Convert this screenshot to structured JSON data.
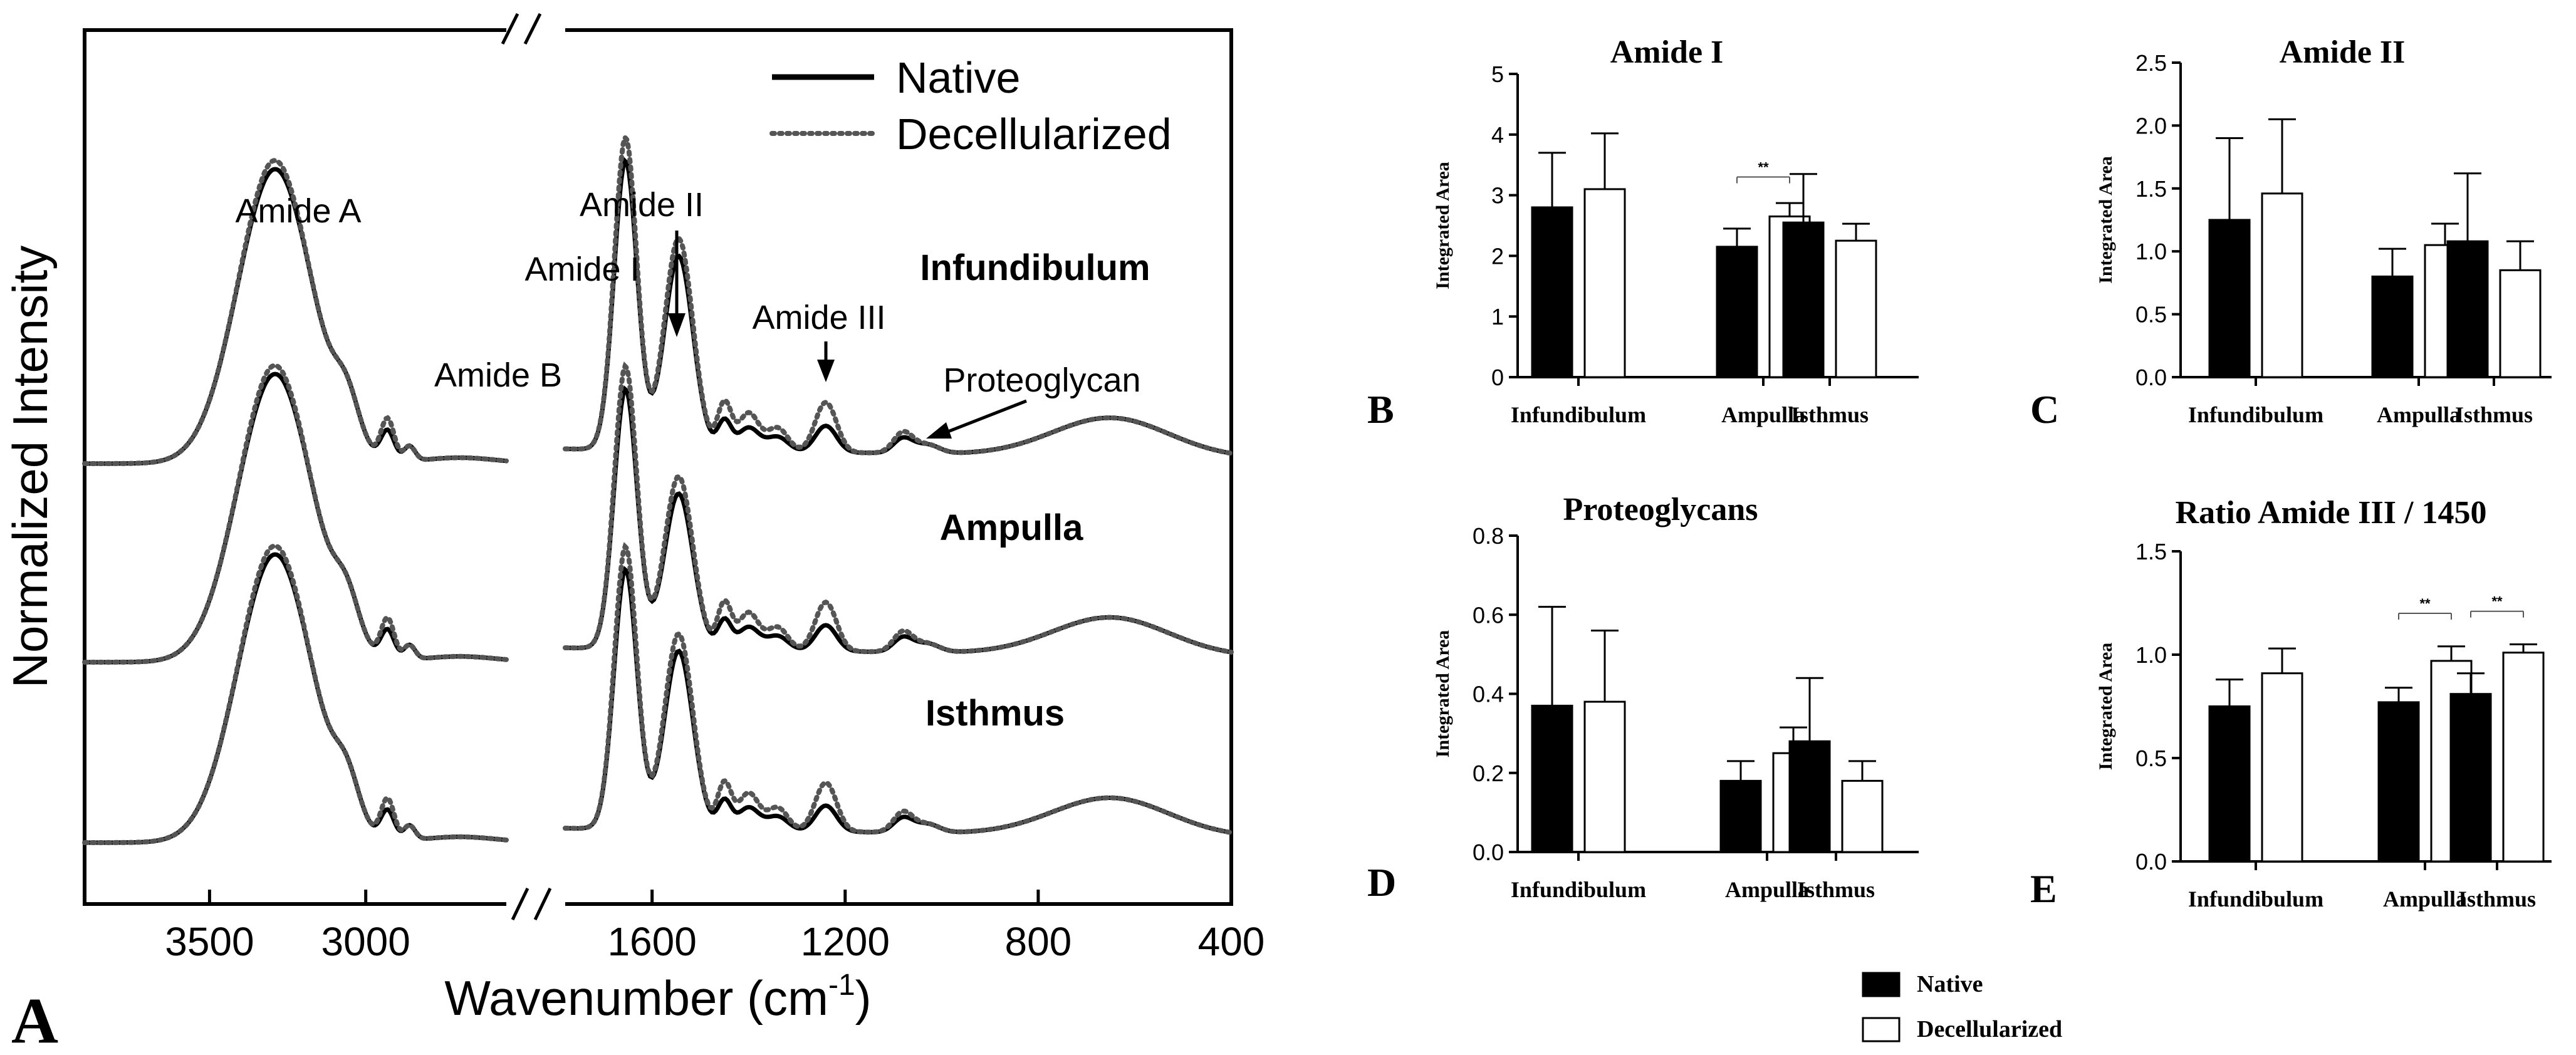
{
  "spectrum": {
    "type": "line",
    "panel_letter": "A",
    "ylabel": "Normalized Intensity",
    "xlabel_main": "Wavenumber (cm",
    "xlabel_sup": "-1",
    "xlabel_close": ")",
    "break_mark": "//",
    "x_ticks": [
      "3500",
      "3000",
      "1600",
      "1200",
      "800",
      "400"
    ],
    "legend": {
      "native": "Native",
      "decell": "Decellularized"
    },
    "peaks": {
      "amide_a": "Amide A",
      "amide_b": "Amide B",
      "amide_i": "Amide I",
      "amide_ii": "Amide II",
      "amide_iii": "Amide III",
      "proteoglycan": "Proteoglycan"
    },
    "regions": [
      "Infundibulum",
      "Ampulla",
      "Isthmus"
    ],
    "x_segments": [
      [
        3900,
        2550
      ],
      [
        1780,
        400
      ]
    ],
    "series_style": {
      "native": "solid",
      "decellularized": "dotted"
    }
  },
  "bars": {
    "categories": [
      "Infundibulum",
      "Ampulla",
      "Isthmus"
    ],
    "ylabel": "Integrated Area",
    "significance_mark": "**",
    "legend": {
      "native": "Native",
      "decell": "Decellularized"
    },
    "colors": {
      "native": "#000000",
      "decellularized": "#ffffff",
      "edge": "#000000"
    }
  },
  "chart_data": [
    {
      "type": "bar",
      "panel": "B",
      "title": "Amide I",
      "ylabel": "Integrated Area",
      "categories": [
        "Infundibulum",
        "Ampulla",
        "Isthmus"
      ],
      "ylim": [
        0,
        5
      ],
      "yticks": [
        "0",
        "1",
        "2",
        "3",
        "4",
        "5"
      ],
      "series": [
        {
          "name": "Native",
          "values": [
            2.8,
            2.15,
            2.55
          ],
          "errors": [
            0.9,
            0.3,
            0.8
          ]
        },
        {
          "name": "Decellularized",
          "values": [
            3.1,
            2.65,
            2.25
          ],
          "errors": [
            0.92,
            0.22,
            0.28
          ]
        }
      ],
      "significance": [
        {
          "category": "Ampulla",
          "label": "**",
          "y": 3.3
        }
      ]
    },
    {
      "type": "bar",
      "panel": "C",
      "title": "Amide II",
      "ylabel": "Integrated Area",
      "categories": [
        "Infundibulum",
        "Ampulla",
        "Isthmus"
      ],
      "ylim": [
        0,
        2.5
      ],
      "yticks": [
        "0.0",
        "0.5",
        "1.0",
        "1.5",
        "2.0",
        "2.5"
      ],
      "series": [
        {
          "name": "Native",
          "values": [
            1.25,
            0.8,
            1.08
          ],
          "errors": [
            0.65,
            0.22,
            0.54
          ]
        },
        {
          "name": "Decellularized",
          "values": [
            1.46,
            1.05,
            0.85
          ],
          "errors": [
            0.59,
            0.17,
            0.23
          ]
        }
      ],
      "significance": []
    },
    {
      "type": "bar",
      "panel": "D",
      "title": "Proteoglycans",
      "ylabel": "Integrated Area",
      "categories": [
        "Infundibulum",
        "Ampulla",
        "Isthmus"
      ],
      "ylim": [
        0,
        0.8
      ],
      "yticks": [
        "0.0",
        "0.2",
        "0.4",
        "0.6",
        "0.8"
      ],
      "series": [
        {
          "name": "Native",
          "values": [
            0.37,
            0.18,
            0.28
          ],
          "errors": [
            0.25,
            0.05,
            0.16
          ]
        },
        {
          "name": "Decellularized",
          "values": [
            0.38,
            0.25,
            0.18
          ],
          "errors": [
            0.18,
            0.065,
            0.05
          ]
        }
      ],
      "significance": []
    },
    {
      "type": "bar",
      "panel": "E",
      "title": "Ratio Amide III / 1450",
      "ylabel": "Integrated Area",
      "categories": [
        "Infundibulum",
        "Ampulla",
        "Isthmus"
      ],
      "ylim": [
        0,
        1.5
      ],
      "yticks": [
        "0.0",
        "0.5",
        "1.0",
        "1.5"
      ],
      "series": [
        {
          "name": "Native",
          "values": [
            0.75,
            0.77,
            0.81
          ],
          "errors": [
            0.13,
            0.07,
            0.1
          ]
        },
        {
          "name": "Decellularized",
          "values": [
            0.91,
            0.97,
            1.01
          ],
          "errors": [
            0.12,
            0.07,
            0.04
          ]
        }
      ],
      "significance": [
        {
          "category": "Ampulla",
          "label": "**",
          "y": 1.2
        },
        {
          "category": "Isthmus",
          "label": "**",
          "y": 1.21
        }
      ]
    }
  ]
}
